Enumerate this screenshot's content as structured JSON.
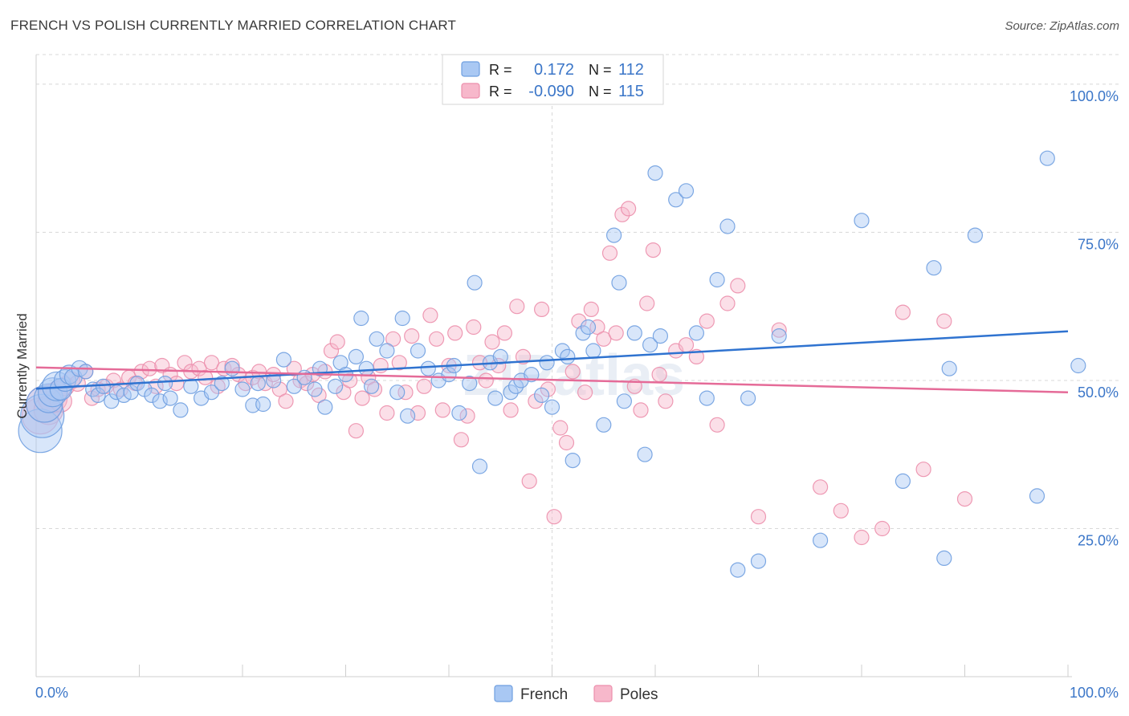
{
  "header": {
    "title": "FRENCH VS POLISH CURRENTLY MARRIED CORRELATION CHART",
    "source": "Source: ZipAtlas.com"
  },
  "watermark": "ZIPatlas",
  "colors": {
    "french_fill": "#a9c8f3",
    "french_stroke": "#6f9fe0",
    "french_line": "#2f73d0",
    "poles_fill": "#f7b8cb",
    "poles_stroke": "#ec8fac",
    "poles_line": "#e56b98",
    "tick_label": "#3b76c8",
    "grid": "#d8d8d8"
  },
  "legend_top": {
    "rows": [
      {
        "series": "French",
        "r_label": "R =",
        "r_value": "0.172",
        "n_label": "N =",
        "n_value": "112"
      },
      {
        "series": "Poles",
        "r_label": "R =",
        "r_value": "-0.090",
        "n_label": "N =",
        "n_value": "115"
      }
    ]
  },
  "legend_bottom": [
    "French",
    "Poles"
  ],
  "chart_data": {
    "type": "scatter",
    "title": "FRENCH VS POLISH CURRENTLY MARRIED CORRELATION CHART",
    "xlabel": "",
    "ylabel": "Currently Married",
    "xlim": [
      0,
      100
    ],
    "ylim": [
      0,
      105
    ],
    "x_tick_labels": [
      "0.0%",
      "100.0%"
    ],
    "y_ticks": [
      25,
      50,
      75,
      100
    ],
    "y_tick_labels": [
      "25.0%",
      "50.0%",
      "75.0%",
      "100.0%"
    ],
    "grid": true,
    "legend_position": "top-center",
    "series": [
      {
        "name": "French",
        "r": 0.172,
        "n": 112,
        "trend": {
          "x0": 0,
          "y0": 48.6,
          "x1": 100,
          "y1": 58.3
        },
        "points": [
          [
            0.4,
            41.5,
            3
          ],
          [
            0.6,
            44,
            3
          ],
          [
            0.8,
            46,
            2.5
          ],
          [
            1.2,
            47,
            2
          ],
          [
            1.6,
            48,
            2
          ],
          [
            2.0,
            49,
            2
          ],
          [
            2.4,
            48.5,
            1.5
          ],
          [
            2.8,
            50,
            1.5
          ],
          [
            3.2,
            51,
            1.3
          ],
          [
            3.6,
            50.5,
            1.2
          ],
          [
            4.2,
            52,
            1.1
          ],
          [
            4.8,
            51.5,
            1
          ],
          [
            5.5,
            48.5,
            1
          ],
          [
            6.0,
            47.5,
            1
          ],
          [
            6.5,
            49,
            1
          ],
          [
            7.3,
            46.5,
            1
          ],
          [
            7.8,
            48,
            1
          ],
          [
            8.5,
            47.5,
            1
          ],
          [
            9.2,
            48,
            1
          ],
          [
            9.8,
            49.5,
            1
          ],
          [
            10.5,
            48.5,
            1
          ],
          [
            11.2,
            47.5,
            1
          ],
          [
            12,
            46.5,
            1
          ],
          [
            12.5,
            49.5,
            1
          ],
          [
            13,
            47,
            1
          ],
          [
            14,
            45,
            1
          ],
          [
            15,
            49,
            1
          ],
          [
            16,
            47,
            1
          ],
          [
            17,
            48,
            1
          ],
          [
            18,
            49.5,
            1
          ],
          [
            19,
            52,
            1
          ],
          [
            20,
            48.5,
            1
          ],
          [
            21,
            45.8,
            1
          ],
          [
            21.5,
            49.5,
            1
          ],
          [
            22,
            46,
            1
          ],
          [
            23,
            50,
            1
          ],
          [
            24,
            53.5,
            1
          ],
          [
            25,
            49,
            1
          ],
          [
            26,
            50.5,
            1
          ],
          [
            27,
            48.5,
            1
          ],
          [
            27.5,
            52,
            1
          ],
          [
            28,
            45.5,
            1
          ],
          [
            29,
            49,
            1
          ],
          [
            29.5,
            53,
            1
          ],
          [
            30,
            51,
            1
          ],
          [
            31,
            54,
            1
          ],
          [
            31.5,
            60.5,
            1
          ],
          [
            32,
            52,
            1
          ],
          [
            32.5,
            49,
            1
          ],
          [
            33,
            57,
            1
          ],
          [
            34,
            55,
            1
          ],
          [
            35,
            48,
            1
          ],
          [
            35.5,
            60.5,
            1
          ],
          [
            36,
            44,
            1
          ],
          [
            37,
            55,
            1
          ],
          [
            38,
            52,
            1
          ],
          [
            39,
            50,
            1
          ],
          [
            40,
            51,
            1
          ],
          [
            40.5,
            52.5,
            1
          ],
          [
            41,
            44.5,
            1
          ],
          [
            42,
            49.5,
            1
          ],
          [
            42.5,
            66.5,
            1
          ],
          [
            43,
            35.5,
            1
          ],
          [
            44,
            53,
            1
          ],
          [
            44.5,
            47,
            1
          ],
          [
            45,
            54,
            1
          ],
          [
            46,
            48,
            1
          ],
          [
            46.5,
            49,
            1
          ],
          [
            47,
            50,
            1
          ],
          [
            48,
            51,
            1
          ],
          [
            49,
            47.5,
            1
          ],
          [
            49.5,
            53,
            1
          ],
          [
            50,
            45.5,
            1
          ],
          [
            51,
            55,
            1
          ],
          [
            51.5,
            54,
            1
          ],
          [
            52,
            36.5,
            1
          ],
          [
            53,
            58,
            1
          ],
          [
            53.5,
            59,
            1
          ],
          [
            54,
            55,
            1
          ],
          [
            55,
            42.5,
            1
          ],
          [
            56,
            74.5,
            1
          ],
          [
            56.5,
            66.5,
            1
          ],
          [
            57,
            46.5,
            1
          ],
          [
            58,
            58,
            1
          ],
          [
            59,
            37.5,
            1
          ],
          [
            59.5,
            56,
            1
          ],
          [
            60,
            85,
            1
          ],
          [
            60.5,
            57.5,
            1
          ],
          [
            62,
            80.5,
            1
          ],
          [
            63,
            82,
            1
          ],
          [
            64,
            58,
            1
          ],
          [
            65,
            47,
            1
          ],
          [
            66,
            67,
            1
          ],
          [
            67,
            76,
            1
          ],
          [
            68,
            18,
            1
          ],
          [
            69,
            47,
            1
          ],
          [
            70,
            19.5,
            1
          ],
          [
            72,
            57.5,
            1
          ],
          [
            76,
            23,
            1
          ],
          [
            80,
            77,
            1
          ],
          [
            84,
            33,
            1
          ],
          [
            87,
            69,
            1
          ],
          [
            88,
            20,
            1
          ],
          [
            88.5,
            52,
            1
          ],
          [
            91,
            74.5,
            1
          ],
          [
            97,
            30.5,
            1
          ],
          [
            98,
            87.5,
            1
          ],
          [
            101,
            52.5,
            1
          ]
        ]
      },
      {
        "name": "Poles",
        "r": -0.09,
        "n": 115,
        "trend": {
          "x0": 0,
          "y0": 52.2,
          "x1": 100,
          "y1": 48.0
        },
        "points": [
          [
            0.4,
            44,
            2.5
          ],
          [
            0.8,
            46,
            2.5
          ],
          [
            1.2,
            45,
            2
          ],
          [
            1.6,
            47,
            2
          ],
          [
            2.0,
            48,
            1.5
          ],
          [
            2.4,
            46.5,
            1.5
          ],
          [
            2.8,
            49,
            1.3
          ],
          [
            3.4,
            50,
            1.2
          ],
          [
            4.0,
            49.5,
            1.1
          ],
          [
            4.8,
            51.5,
            1
          ],
          [
            5.4,
            47,
            1
          ],
          [
            6.0,
            48.5,
            1
          ],
          [
            6.8,
            49,
            1
          ],
          [
            7.5,
            50,
            1
          ],
          [
            8.2,
            48.5,
            1
          ],
          [
            9.0,
            50.5,
            1
          ],
          [
            9.6,
            49.5,
            1
          ],
          [
            10.2,
            51.5,
            1
          ],
          [
            11,
            52,
            1
          ],
          [
            11.6,
            49,
            1
          ],
          [
            12.2,
            52.5,
            1
          ],
          [
            13,
            51,
            1
          ],
          [
            13.6,
            49.5,
            1
          ],
          [
            14.4,
            53,
            1
          ],
          [
            15,
            51.5,
            1
          ],
          [
            15.8,
            52,
            1
          ],
          [
            16.4,
            50.5,
            1
          ],
          [
            17,
            53,
            1
          ],
          [
            17.6,
            49,
            1
          ],
          [
            18.2,
            52,
            1
          ],
          [
            19,
            52.5,
            1
          ],
          [
            19.6,
            51,
            1
          ],
          [
            20.3,
            49.5,
            1
          ],
          [
            21,
            50.5,
            1
          ],
          [
            21.6,
            51.5,
            1
          ],
          [
            22.2,
            49.5,
            1
          ],
          [
            23,
            51,
            1
          ],
          [
            23.6,
            48.5,
            1
          ],
          [
            24.2,
            46.5,
            1
          ],
          [
            25,
            52,
            1
          ],
          [
            25.6,
            50,
            1
          ],
          [
            26.2,
            49.5,
            1
          ],
          [
            26.8,
            51,
            1
          ],
          [
            27.4,
            47.5,
            1
          ],
          [
            28,
            51.5,
            1
          ],
          [
            28.6,
            55,
            1
          ],
          [
            29.2,
            56.5,
            1
          ],
          [
            29.8,
            48,
            1
          ],
          [
            30.4,
            50,
            1
          ],
          [
            31,
            41.5,
            1
          ],
          [
            31.6,
            47,
            1
          ],
          [
            32.2,
            50.5,
            1
          ],
          [
            32.8,
            48.5,
            1
          ],
          [
            33.4,
            52.5,
            1
          ],
          [
            34,
            44.5,
            1
          ],
          [
            34.6,
            57,
            1
          ],
          [
            35.2,
            53,
            1
          ],
          [
            35.8,
            48,
            1
          ],
          [
            36.4,
            57.5,
            1
          ],
          [
            37,
            44.5,
            1
          ],
          [
            37.6,
            49,
            1
          ],
          [
            38.2,
            61,
            1
          ],
          [
            38.8,
            57,
            1
          ],
          [
            39.4,
            45,
            1
          ],
          [
            40,
            52.5,
            1
          ],
          [
            40.6,
            58,
            1
          ],
          [
            41.2,
            40,
            1
          ],
          [
            41.8,
            44,
            1
          ],
          [
            42.4,
            59,
            1
          ],
          [
            43,
            53,
            1
          ],
          [
            43.6,
            50,
            1
          ],
          [
            44.2,
            56.5,
            1
          ],
          [
            44.8,
            52.5,
            1
          ],
          [
            45.4,
            58,
            1
          ],
          [
            46,
            45,
            1
          ],
          [
            46.6,
            62.5,
            1
          ],
          [
            47.2,
            54,
            1
          ],
          [
            47.8,
            33,
            1
          ],
          [
            48.4,
            46.5,
            1
          ],
          [
            49,
            62,
            1
          ],
          [
            49.6,
            48.5,
            1
          ],
          [
            50.2,
            27,
            1
          ],
          [
            50.8,
            42,
            1
          ],
          [
            51.4,
            39.5,
            1
          ],
          [
            52,
            51.5,
            1
          ],
          [
            52.6,
            60,
            1
          ],
          [
            53.2,
            48,
            1
          ],
          [
            53.8,
            62,
            1
          ],
          [
            54.4,
            59,
            1
          ],
          [
            55,
            57,
            1
          ],
          [
            55.6,
            71.5,
            1
          ],
          [
            56.2,
            58,
            1
          ],
          [
            56.8,
            78,
            1
          ],
          [
            57.4,
            79,
            1
          ],
          [
            58,
            49,
            1
          ],
          [
            58.6,
            45,
            1
          ],
          [
            59.2,
            63,
            1
          ],
          [
            59.8,
            72,
            1
          ],
          [
            60.4,
            51,
            1
          ],
          [
            61,
            46.5,
            1
          ],
          [
            62,
            55,
            1
          ],
          [
            63,
            56,
            1
          ],
          [
            64,
            54,
            1
          ],
          [
            65,
            60,
            1
          ],
          [
            66,
            42.5,
            1
          ],
          [
            67,
            63,
            1
          ],
          [
            68,
            66,
            1
          ],
          [
            70,
            27,
            1
          ],
          [
            72,
            58.5,
            1
          ],
          [
            76,
            32,
            1
          ],
          [
            78,
            28,
            1
          ],
          [
            80,
            23.5,
            1
          ],
          [
            82,
            25,
            1
          ],
          [
            84,
            61.5,
            1
          ],
          [
            86,
            35,
            1
          ],
          [
            88,
            60,
            1
          ],
          [
            90,
            30,
            1
          ]
        ]
      }
    ]
  }
}
